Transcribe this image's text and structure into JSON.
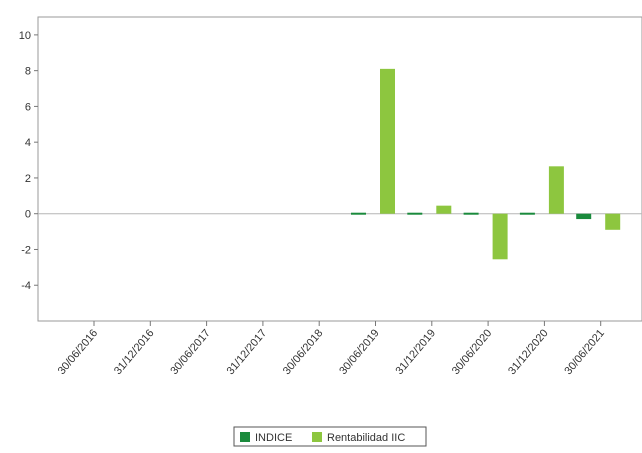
{
  "chart_data": {
    "type": "bar",
    "categories": [
      "30/06/2016",
      "31/12/2016",
      "30/06/2017",
      "31/12/2017",
      "30/06/2018",
      "30/06/2019",
      "31/12/2019",
      "30/06/2020",
      "31/12/2020",
      "30/06/2021"
    ],
    "series": [
      {
        "name": "INDICE",
        "color": "#1a8a3c",
        "values": [
          null,
          null,
          null,
          null,
          null,
          0.0,
          0.08,
          0.08,
          0.0,
          -0.3
        ]
      },
      {
        "name": "Rentabilidad IIC",
        "color": "#8dc63f",
        "values": [
          null,
          null,
          null,
          null,
          null,
          8.1,
          0.45,
          -2.55,
          2.65,
          -0.9
        ]
      }
    ],
    "ylim": [
      -6,
      11
    ],
    "yticks": [
      10,
      8,
      6,
      4,
      2,
      0,
      -2,
      -4
    ],
    "title": "",
    "xlabel": "",
    "ylabel": "",
    "grid": false,
    "legend_position": "bottom-center"
  }
}
